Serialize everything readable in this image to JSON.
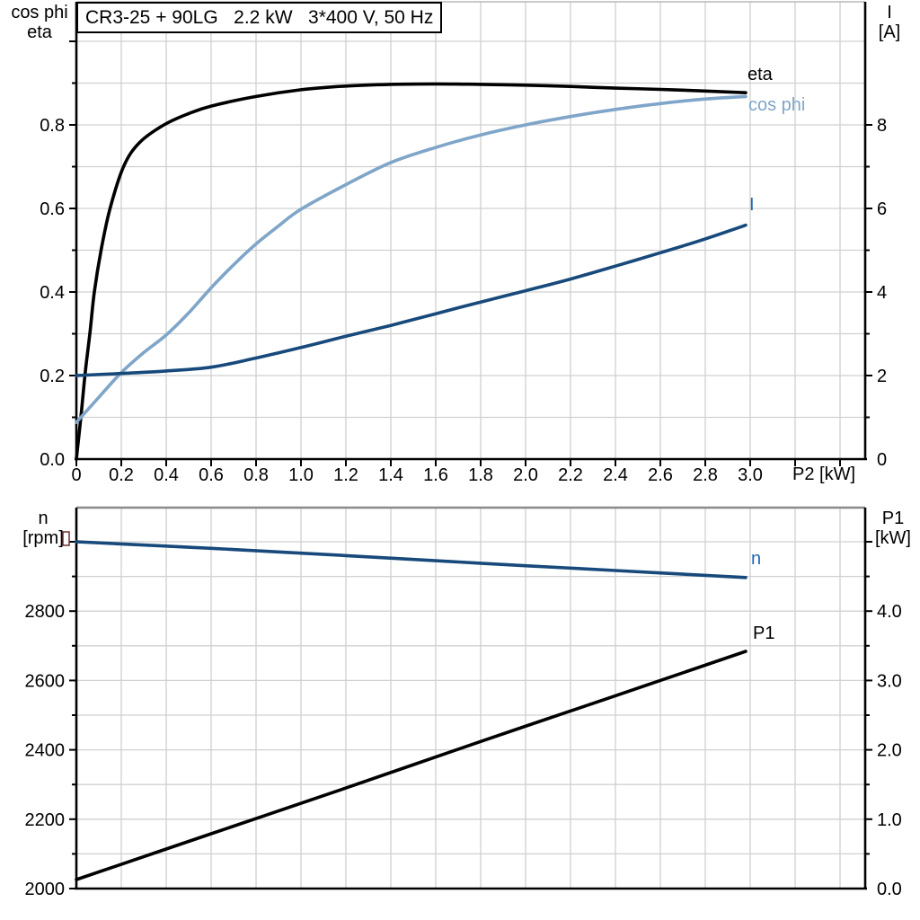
{
  "colors": {
    "eta_curve": "#000000",
    "cos_phi_curve": "#7fa5c9",
    "current_curve": "#17497b",
    "speed_curve": "#17497b",
    "p1_curve": "#000000",
    "label_blue": "#1e68ae",
    "grid": "#d0d0d0",
    "axis": "#000000",
    "frame_gray": "#8a8a8a",
    "marker_artifact": "#6b3030"
  },
  "chart_data": [
    {
      "type": "line",
      "title": "CR3-25 + 90LG   2.2 kW   3*400 V, 50 Hz",
      "x": {
        "label": "P2 [kW]",
        "min": 0,
        "max": 3.51,
        "grid_step": 0.2,
        "tick_step": 0.2,
        "tick_values": [
          0,
          0.2,
          0.4,
          0.6,
          0.8,
          1.0,
          1.2,
          1.4,
          1.6,
          1.8,
          2.0,
          2.2,
          2.4,
          2.6,
          2.8,
          3.0
        ],
        "tick_labels": [
          "0",
          "0.2",
          "0.4",
          "0.6",
          "0.8",
          "1.0",
          "1.2",
          "1.4",
          "1.6",
          "1.8",
          "2.0",
          "2.2",
          "2.4",
          "2.6",
          "2.8",
          "3.0"
        ]
      },
      "y_left": {
        "label": [
          "cos phi",
          "eta"
        ],
        "min": 0,
        "max": 1.09,
        "grid_step": 0.1,
        "tick_values": [
          0,
          0.2,
          0.4,
          0.6,
          0.8
        ],
        "tick_labels": [
          "0.0",
          "0.2",
          "0.4",
          "0.6",
          "0.8"
        ]
      },
      "y_right": {
        "label": [
          "I",
          "[A]"
        ],
        "min": 0,
        "max": 8.7,
        "tick_values": [
          0,
          2,
          4,
          6,
          8
        ],
        "tick_labels": [
          "0",
          "2",
          "4",
          "6",
          "8"
        ]
      },
      "grid": true,
      "legend_position": "curve-end-labels",
      "series": [
        {
          "name": "eta",
          "axis": "left",
          "color_key": "eta_curve",
          "label_color_key": "eta_curve",
          "points": [
            [
              0,
              0
            ],
            [
              0.02,
              0.1
            ],
            [
              0.04,
              0.21
            ],
            [
              0.06,
              0.3
            ],
            [
              0.08,
              0.4
            ],
            [
              0.11,
              0.5
            ],
            [
              0.15,
              0.6
            ],
            [
              0.21,
              0.7
            ],
            [
              0.28,
              0.757
            ],
            [
              0.39,
              0.8
            ],
            [
              0.5,
              0.827
            ],
            [
              0.6,
              0.845
            ],
            [
              0.8,
              0.868
            ],
            [
              1.0,
              0.884
            ],
            [
              1.2,
              0.893
            ],
            [
              1.4,
              0.897
            ],
            [
              1.6,
              0.898
            ],
            [
              1.8,
              0.897
            ],
            [
              2.0,
              0.895
            ],
            [
              2.2,
              0.892
            ],
            [
              2.4,
              0.888
            ],
            [
              2.6,
              0.885
            ],
            [
              2.8,
              0.881
            ],
            [
              2.98,
              0.877
            ]
          ]
        },
        {
          "name": "cos phi",
          "axis": "left",
          "color_key": "cos_phi_curve",
          "label_color_key": "cos_phi_curve",
          "points": [
            [
              0,
              0.088
            ],
            [
              0.1,
              0.148
            ],
            [
              0.2,
              0.207
            ],
            [
              0.3,
              0.255
            ],
            [
              0.4,
              0.297
            ],
            [
              0.5,
              0.35
            ],
            [
              0.6,
              0.41
            ],
            [
              0.7,
              0.465
            ],
            [
              0.8,
              0.515
            ],
            [
              0.9,
              0.558
            ],
            [
              1.0,
              0.598
            ],
            [
              1.2,
              0.657
            ],
            [
              1.4,
              0.71
            ],
            [
              1.6,
              0.746
            ],
            [
              1.8,
              0.776
            ],
            [
              2.0,
              0.8
            ],
            [
              2.2,
              0.82
            ],
            [
              2.4,
              0.837
            ],
            [
              2.6,
              0.851
            ],
            [
              2.8,
              0.862
            ],
            [
              2.98,
              0.868
            ]
          ]
        },
        {
          "name": "I",
          "axis": "right",
          "color_key": "current_curve",
          "label_color_key": "label_blue",
          "points": [
            [
              0,
              2.0
            ],
            [
              0.2,
              2.05
            ],
            [
              0.4,
              2.11
            ],
            [
              0.6,
              2.2
            ],
            [
              0.8,
              2.42
            ],
            [
              1.0,
              2.67
            ],
            [
              1.2,
              2.94
            ],
            [
              1.4,
              3.2
            ],
            [
              1.6,
              3.48
            ],
            [
              1.8,
              3.76
            ],
            [
              2.0,
              4.03
            ],
            [
              2.2,
              4.31
            ],
            [
              2.4,
              4.62
            ],
            [
              2.6,
              4.94
            ],
            [
              2.8,
              5.27
            ],
            [
              2.98,
              5.6
            ]
          ]
        }
      ]
    },
    {
      "type": "line",
      "title": "",
      "x": {
        "label": "",
        "min": 0,
        "max": 3.51,
        "grid_step": 0.2,
        "tick_values": [],
        "tick_labels": []
      },
      "y_left": {
        "label": [
          "n",
          "[rpm]"
        ],
        "min": 2000,
        "max": 3098,
        "grid_step": 100,
        "tick_values": [
          2000,
          2200,
          2400,
          2600,
          2800
        ],
        "tick_labels": [
          "2000",
          "2200",
          "2400",
          "2600",
          "2800"
        ]
      },
      "y_right": {
        "label": [
          "P1",
          "[kW]"
        ],
        "min": 0,
        "max": 5.49,
        "tick_values": [
          0,
          1,
          2,
          3,
          4
        ],
        "tick_labels": [
          "0.0",
          "1.0",
          "2.0",
          "3.0",
          "4.0"
        ]
      },
      "grid": true,
      "legend_position": "curve-end-labels",
      "series": [
        {
          "name": "n",
          "axis": "left",
          "color_key": "speed_curve",
          "label_color_key": "label_blue",
          "points": [
            [
              0,
              3000
            ],
            [
              0.6,
              2981
            ],
            [
              1.2,
              2960
            ],
            [
              1.8,
              2938
            ],
            [
              2.4,
              2917
            ],
            [
              2.98,
              2897
            ]
          ]
        },
        {
          "name": "P1",
          "axis": "right",
          "color_key": "p1_curve",
          "label_color_key": "p1_curve",
          "points": [
            [
              0,
              0.13
            ],
            [
              0.6,
              0.79
            ],
            [
              1.2,
              1.45
            ],
            [
              1.8,
              2.12
            ],
            [
              2.4,
              2.78
            ],
            [
              2.98,
              3.42
            ]
          ]
        }
      ]
    }
  ]
}
